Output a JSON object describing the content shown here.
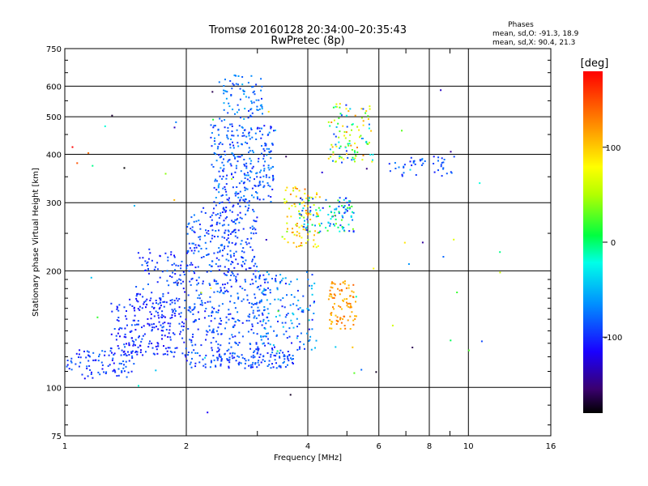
{
  "chart_data": {
    "type": "scatter",
    "title": "Tromsø 20160128 20:34:00–20:35:43",
    "subtitle": "RwPretec (8p)",
    "xlabel": "Frequency [MHz]",
    "ylabel": "Stationary phase Virtual Height [km]",
    "x_scale": "log",
    "y_scale": "log",
    "xlim": [
      1,
      16
    ],
    "ylim": [
      75,
      750
    ],
    "x_ticks": [
      1,
      2,
      4,
      6,
      8,
      10,
      16
    ],
    "x_tick_labels": [
      "1",
      "2",
      "4",
      "6",
      "8",
      "10",
      "16"
    ],
    "x_minor_ticks": [
      3,
      5,
      7,
      9
    ],
    "y_ticks": [
      75,
      100,
      200,
      300,
      400,
      500,
      600,
      750
    ],
    "y_tick_labels": [
      "75",
      "100",
      "200",
      "300",
      "400",
      "500",
      "600",
      "750"
    ],
    "grid": true,
    "info": {
      "heading": "Phases",
      "line1": "mean, sd,O: -91.3, 18.9",
      "line2": "mean, sd,X:  90.4, 21.3"
    },
    "colorbar": {
      "label": "[deg]",
      "range": [
        -180,
        180
      ],
      "ticks": [
        100,
        0,
        -100
      ],
      "tick_labels": [
        "100",
        "0",
        "-100"
      ]
    },
    "clusters": [
      {
        "x": [
          1.0,
          1.5
        ],
        "y": [
          105,
          125
        ],
        "phase": [
          -115,
          -75
        ],
        "n": 90
      },
      {
        "x": [
          1.3,
          2.0
        ],
        "y": [
          120,
          170
        ],
        "phase": [
          -120,
          -80
        ],
        "n": 220
      },
      {
        "x": [
          1.5,
          2.1
        ],
        "y": [
          150,
          230
        ],
        "phase": [
          -115,
          -75
        ],
        "n": 120
      },
      {
        "x": [
          2.0,
          3.7
        ],
        "y": [
          112,
          125
        ],
        "phase": [
          -110,
          -70
        ],
        "n": 150
      },
      {
        "x": [
          2.0,
          3.2
        ],
        "y": [
          125,
          200
        ],
        "phase": [
          -110,
          -70
        ],
        "n": 260
      },
      {
        "x": [
          2.0,
          3.0
        ],
        "y": [
          200,
          300
        ],
        "phase": [
          -110,
          -70
        ],
        "n": 230
      },
      {
        "x": [
          2.3,
          3.3
        ],
        "y": [
          300,
          480
        ],
        "phase": [
          -110,
          -60
        ],
        "n": 280
      },
      {
        "x": [
          2.4,
          3.1
        ],
        "y": [
          480,
          640
        ],
        "phase": [
          -100,
          -50
        ],
        "n": 80
      },
      {
        "x": [
          3.0,
          4.2
        ],
        "y": [
          125,
          200
        ],
        "phase": [
          -110,
          -40
        ],
        "n": 140
      },
      {
        "x": [
          3.5,
          4.3
        ],
        "y": [
          230,
          330
        ],
        "phase": [
          50,
          140
        ],
        "n": 90
      },
      {
        "x": [
          4.5,
          5.3
        ],
        "y": [
          140,
          190
        ],
        "phase": [
          100,
          140
        ],
        "n": 90
      },
      {
        "x": [
          3.8,
          5.2
        ],
        "y": [
          250,
          310
        ],
        "phase": [
          -120,
          40
        ],
        "n": 110
      },
      {
        "x": [
          4.5,
          5.8
        ],
        "y": [
          380,
          540
        ],
        "phase": [
          -100,
          130
        ],
        "n": 110
      },
      {
        "x": [
          6.3,
          9.3
        ],
        "y": [
          350,
          395
        ],
        "phase": [
          -110,
          -70
        ],
        "n": 45
      },
      {
        "x": [
          1.0,
          12.0
        ],
        "y": [
          85,
          650
        ],
        "phase": [
          -180,
          180
        ],
        "n": 60
      }
    ]
  }
}
